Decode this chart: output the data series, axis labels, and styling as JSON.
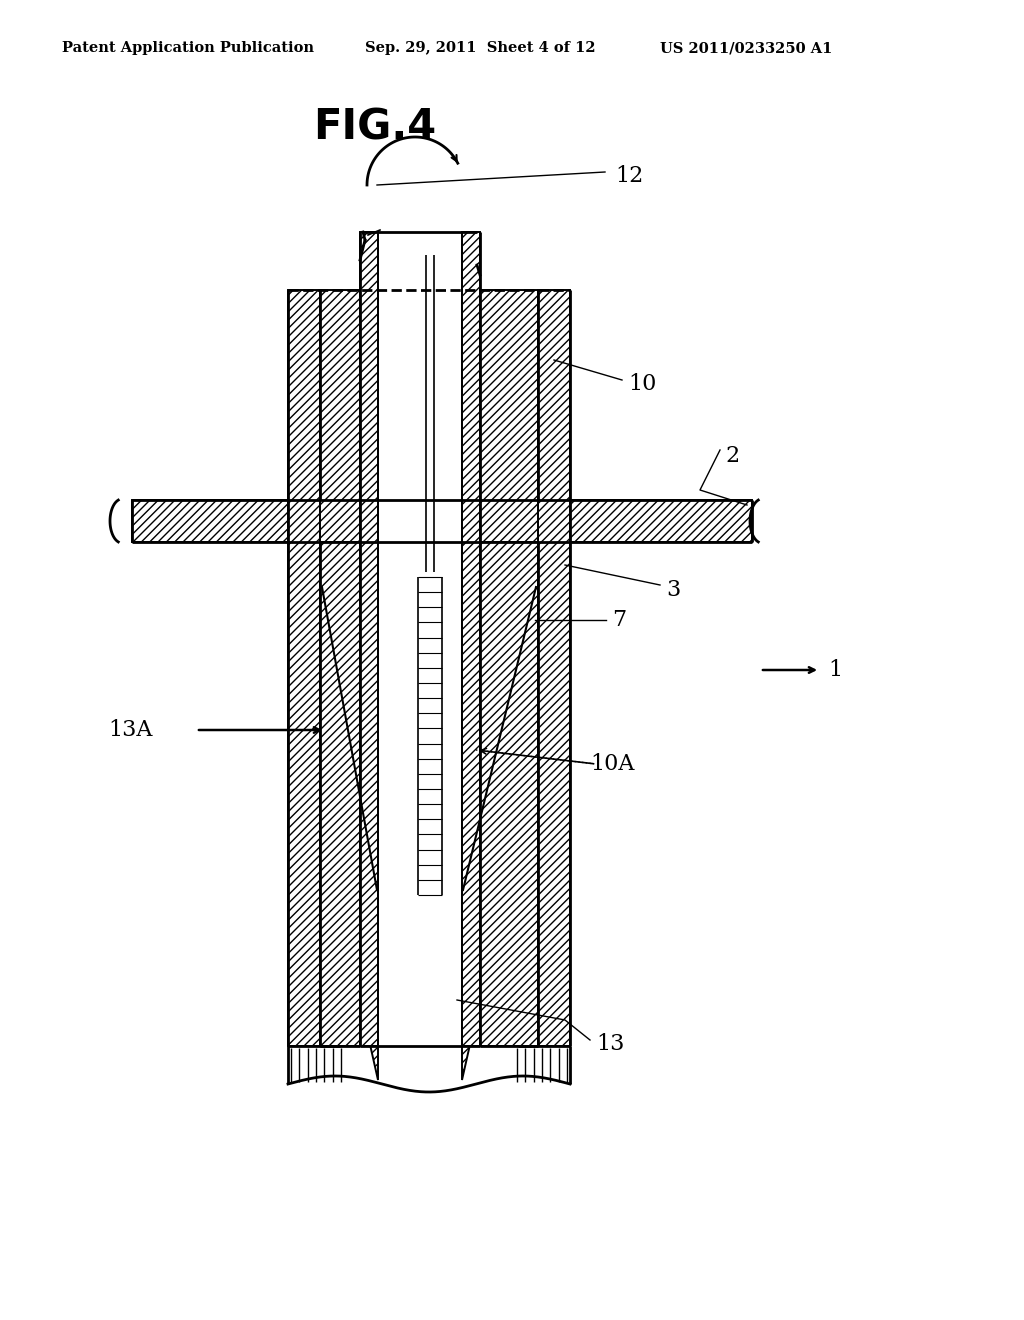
{
  "title": "FIG.4",
  "header_left": "Patent Application Publication",
  "header_center": "Sep. 29, 2011  Sheet 4 of 12",
  "header_right": "US 2011/0233250 A1",
  "bg_color": "#ffffff",
  "label_12": "12",
  "label_10": "10",
  "label_2": "2",
  "label_3": "3",
  "label_1": "1",
  "label_7": "7",
  "label_13A": "13A",
  "label_10A": "10A",
  "label_13": "13"
}
